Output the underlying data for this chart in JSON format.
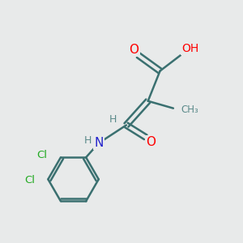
{
  "bg_color": "#e8eaea",
  "bond_color": "#3a7070",
  "atom_colors": {
    "O": "#ff0000",
    "N": "#2222cc",
    "Cl": "#22aa22",
    "H": "#5a8a8a"
  },
  "figsize": [
    3.0,
    3.0
  ],
  "dpi": 100
}
